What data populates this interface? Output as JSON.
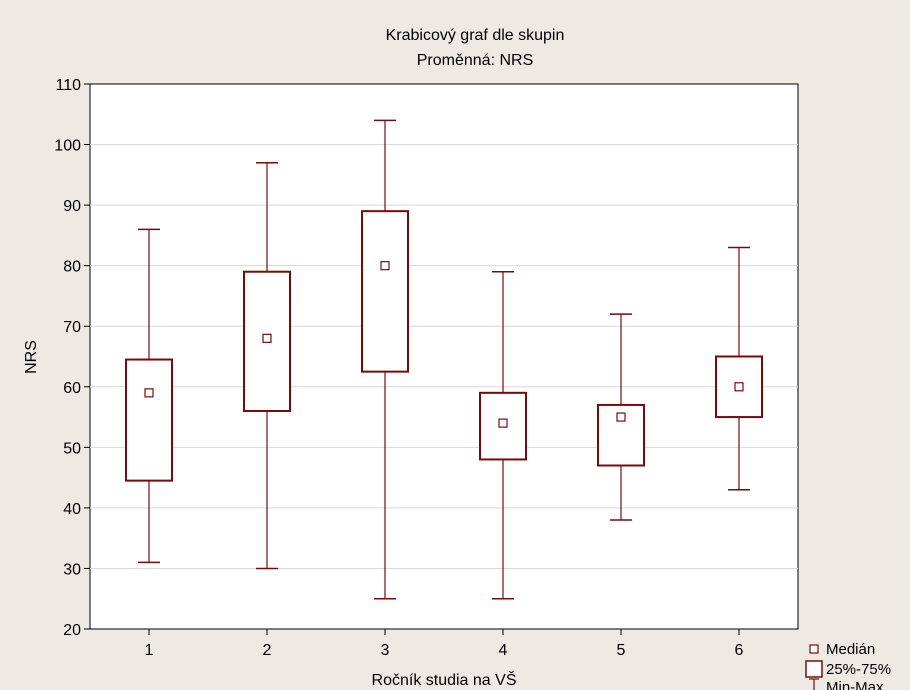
{
  "colors": {
    "background": "#ECEAE2",
    "plot_background": "#FFFFFF",
    "series": "#7A0A0A",
    "grid": "#D8D8D8"
  },
  "chart_data": {
    "type": "box",
    "title": "Krabicový graf dle skupin",
    "subtitle": "Proměnná: NRS",
    "xlabel": "Ročník studia na VŠ",
    "ylabel": "NRS",
    "ylim": [
      20,
      110
    ],
    "yticks": [
      20,
      30,
      40,
      50,
      60,
      70,
      80,
      90,
      100,
      110
    ],
    "grid": "horizontal",
    "legend_position": "bottom-right",
    "categories": [
      "1",
      "2",
      "3",
      "4",
      "5",
      "6"
    ],
    "boxes": [
      {
        "category": "1",
        "min": 31,
        "q1": 44.5,
        "median": 59,
        "q3": 64.5,
        "max": 86
      },
      {
        "category": "2",
        "min": 30,
        "q1": 56,
        "median": 68,
        "q3": 79,
        "max": 97
      },
      {
        "category": "3",
        "min": 25,
        "q1": 62.5,
        "median": 80,
        "q3": 89,
        "max": 104
      },
      {
        "category": "4",
        "min": 25,
        "q1": 48,
        "median": 54,
        "q3": 59,
        "max": 79
      },
      {
        "category": "5",
        "min": 38,
        "q1": 47,
        "median": 55,
        "q3": 57,
        "max": 72
      },
      {
        "category": "6",
        "min": 43,
        "q1": 55,
        "median": 60,
        "q3": 65,
        "max": 83
      }
    ],
    "legend": [
      {
        "label": "Medián",
        "symbol": "median"
      },
      {
        "label": "25%-75%",
        "symbol": "box"
      },
      {
        "label": "Min-Max",
        "symbol": "whisker"
      }
    ]
  }
}
